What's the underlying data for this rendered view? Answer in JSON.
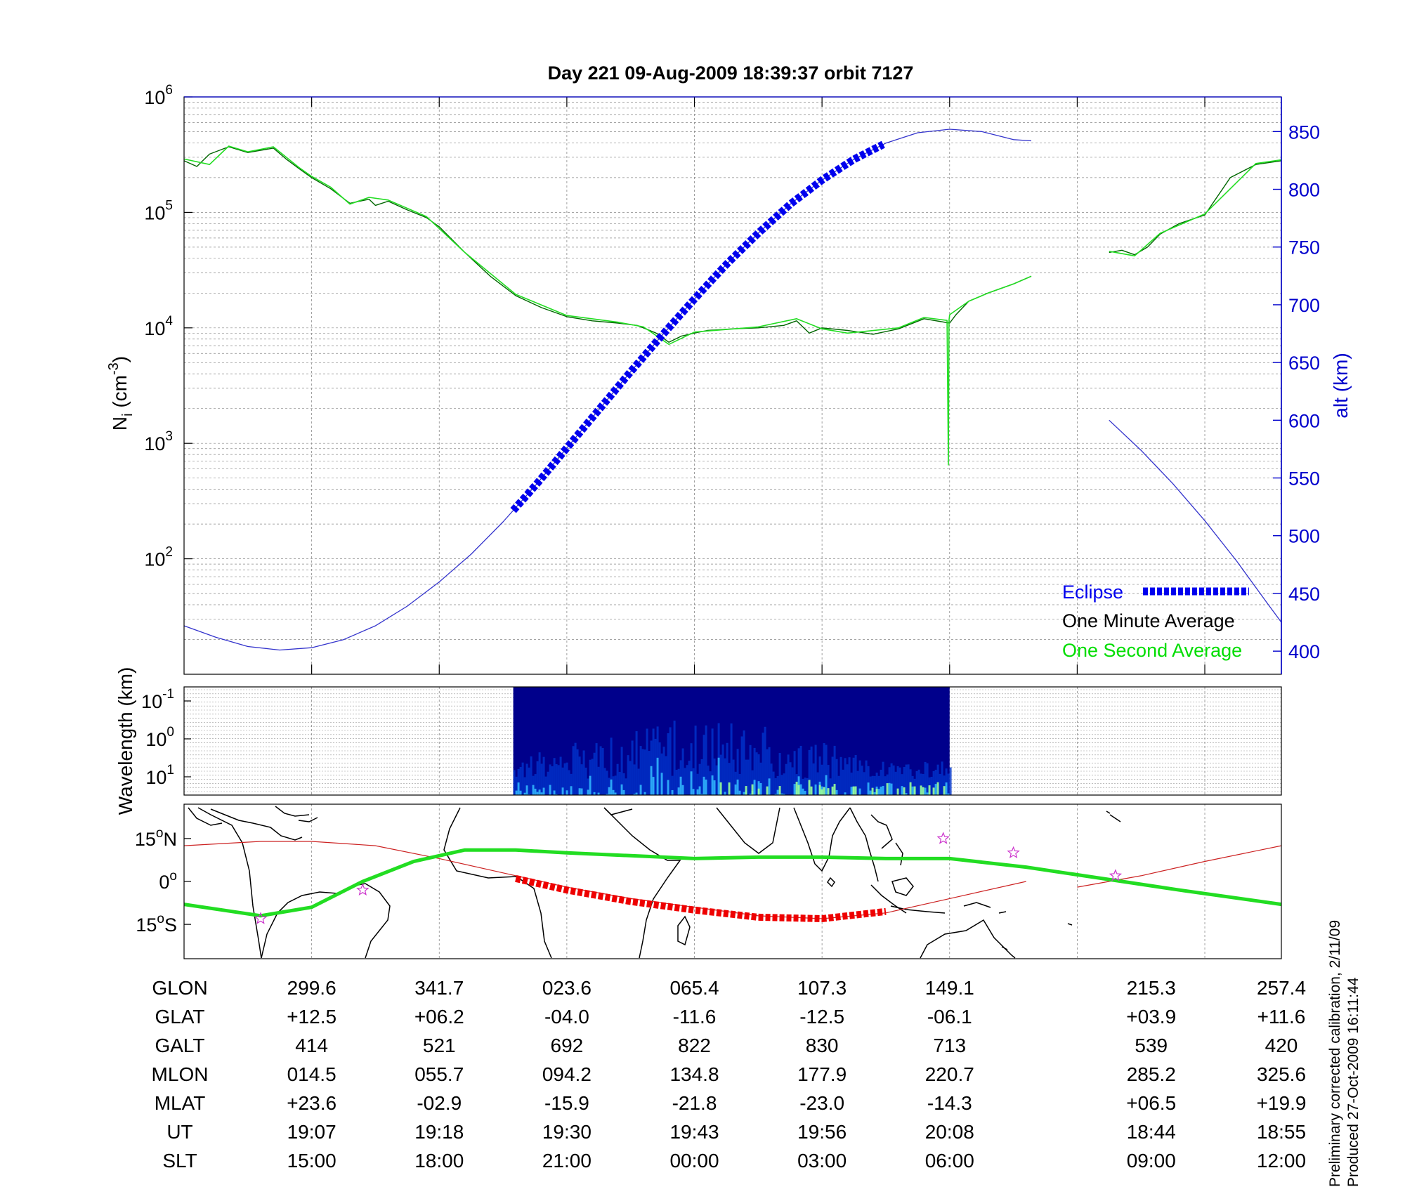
{
  "chart_data": [
    {
      "type": "line",
      "title": "Day 221  09-Aug-2009 18:39:37   orbit 7127",
      "ylabel": "N_i (cm^-3)",
      "ylabel_base": "N",
      "ylabel_sub": "i",
      "ylabel_unit": "(cm",
      "ylabel_exp": "-3",
      "ylabel_close": ")",
      "yscale": "log",
      "ylim": [
        10,
        1000000
      ],
      "y_tick_labels": [
        {
          "value": 100,
          "base": "10",
          "exp": "2"
        },
        {
          "value": 1000,
          "base": "10",
          "exp": "3"
        },
        {
          "value": 10000,
          "base": "10",
          "exp": "4"
        },
        {
          "value": 100000,
          "base": "10",
          "exp": "5"
        },
        {
          "value": 1000000,
          "base": "10",
          "exp": "6"
        }
      ],
      "y2label": "alt (km)",
      "y2lim": [
        380,
        880
      ],
      "y2_ticks": [
        "400",
        "450",
        "500",
        "550",
        "600",
        "650",
        "700",
        "750",
        "800",
        "850"
      ],
      "xlim": [
        0,
        8.6
      ],
      "grid": true,
      "legend_position": "bottom-right",
      "legend": [
        {
          "label": "Eclipse",
          "color": "#0000ee"
        },
        {
          "label": "One Minute Average",
          "color": "#000000"
        },
        {
          "label": "One Second Average",
          "color": "#00dd00"
        }
      ],
      "series": [
        {
          "name": "One Minute Average",
          "color": "#006600",
          "segments": [
            {
              "x": [
                0,
                0.1,
                0.2,
                0.35,
                0.5,
                0.7,
                0.8,
                0.9,
                1.0,
                1.15,
                1.3,
                1.45,
                1.5,
                1.6,
                1.75,
                1.9,
                2.0,
                2.2,
                2.4,
                2.6,
                2.8,
                3.0,
                3.2,
                3.4,
                3.55,
                3.6,
                3.7,
                3.8,
                3.9,
                4.0,
                4.1,
                4.3,
                4.5,
                4.7,
                4.8,
                4.9,
                5.0,
                5.2,
                5.4,
                5.6,
                5.8,
                6.0,
                6.05,
                6.15,
                6.3,
                6.5,
                6.64
              ],
              "y": [
                280000,
                250000,
                320000,
                370000,
                330000,
                360000,
                290000,
                240000,
                200000,
                160000,
                120000,
                130000,
                115000,
                125000,
                105000,
                90000,
                75000,
                45000,
                28000,
                19000,
                15000,
                12500,
                11500,
                11000,
                10500,
                10000,
                9000,
                7500,
                8500,
                9000,
                9500,
                9800,
                10000,
                10500,
                11500,
                9000,
                10000,
                9500,
                8800,
                9800,
                12000,
                11000,
                13000,
                17000,
                20000,
                24000,
                28000
              ]
            },
            {
              "x": [
                7.25,
                7.35,
                7.45,
                7.55,
                7.65,
                7.8,
                8.0,
                8.2,
                8.4,
                8.6
              ],
              "y": [
                45000,
                47000,
                43000,
                50000,
                65000,
                80000,
                95000,
                200000,
                260000,
                280000
              ]
            }
          ]
        },
        {
          "name": "One Second Average",
          "color": "#22dd22",
          "segments": [
            {
              "x": [
                0,
                0.2,
                0.35,
                0.5,
                0.7,
                0.9,
                1.0,
                1.15,
                1.3,
                1.45,
                1.6,
                1.9,
                2.2,
                2.6,
                3.0,
                3.4,
                3.6,
                3.8,
                4.0,
                4.5,
                4.8,
                5.0,
                5.2,
                5.6,
                5.8,
                5.98,
                5.99,
                5.995,
                6.0,
                6.15,
                6.3,
                6.5,
                6.64
              ],
              "y": [
                290000,
                260000,
                375000,
                335000,
                370000,
                245000,
                205000,
                165000,
                118000,
                135000,
                128000,
                92000,
                45000,
                19500,
                12800,
                11200,
                10200,
                7200,
                9200,
                10200,
                12000,
                9800,
                9000,
                10000,
                12300,
                11600,
                650,
                11600,
                13000,
                17000,
                20000,
                24000,
                28000
              ]
            },
            {
              "x": [
                7.25,
                7.45,
                7.65,
                8.0,
                8.4,
                8.6
              ],
              "y": [
                46000,
                42000,
                66000,
                97000,
                265000,
                285000
              ]
            }
          ]
        },
        {
          "name": "alt (km)",
          "axis": "y2",
          "color": "#3333cc",
          "segments": [
            {
              "x": [
                0,
                0.25,
                0.5,
                0.75,
                1.0,
                1.25,
                1.5,
                1.75,
                2.0,
                2.25,
                2.5,
                2.75,
                3.0,
                3.25,
                3.5,
                3.75,
                4.0,
                4.25,
                4.5,
                4.75,
                5.0,
                5.25,
                5.5,
                5.75,
                6.0,
                6.25,
                6.5,
                6.64
              ],
              "y": [
                422,
                412,
                404,
                401,
                403,
                410,
                422,
                439,
                460,
                484,
                512,
                543,
                576,
                609,
                642,
                674,
                705,
                735,
                762,
                787,
                808,
                826,
                840,
                849,
                852,
                850,
                843,
                842
              ]
            },
            {
              "x": [
                7.25,
                7.5,
                7.75,
                8.0,
                8.25,
                8.5,
                8.6
              ],
              "y": [
                600,
                574,
                545,
                513,
                478,
                440,
                425
              ]
            }
          ]
        }
      ],
      "eclipse": {
        "x_start": 2.58,
        "x_end": 5.48,
        "color": "#0000ee"
      }
    },
    {
      "type": "heatmap",
      "ylabel": "Wavelength (km)",
      "yscale": "log",
      "y_tick_labels": [
        {
          "base": "10",
          "exp": "-1"
        },
        {
          "base": "10",
          "exp": "0"
        },
        {
          "base": "10",
          "exp": "1"
        }
      ],
      "x_start": 2.58,
      "x_end": 6.0,
      "colormap": [
        "#00008b",
        "#0033cc",
        "#33bbff",
        "#99ff99"
      ]
    },
    {
      "type": "line",
      "subtype": "map",
      "y_tick_labels": [
        {
          "deg": "15",
          "hemi": "N"
        },
        {
          "deg": "0",
          "hemi": ""
        },
        {
          "deg": "15",
          "hemi": "S"
        }
      ],
      "ylim": [
        -27,
        27
      ],
      "series": [
        {
          "name": "orbit track",
          "color": "#cc2222",
          "x": [
            0,
            0.6,
            1.0,
            1.5,
            2.0,
            2.5,
            3.0,
            3.5,
            4.0,
            4.5,
            5.0,
            5.5,
            6.0,
            6.6
          ],
          "y": [
            12.5,
            14,
            14,
            12.5,
            8,
            3,
            -2,
            -6,
            -9,
            -12,
            -13,
            -11,
            -6,
            0
          ]
        },
        {
          "name": "orbit track east",
          "color": "#cc2222",
          "x": [
            7.0,
            7.5,
            8.0,
            8.6
          ],
          "y": [
            -2,
            2,
            7,
            12.5
          ]
        },
        {
          "name": "magnetic equator",
          "color": "#22dd22",
          "x": [
            0,
            0.3,
            0.6,
            1.0,
            1.4,
            1.8,
            2.2,
            2.6,
            3.0,
            3.5,
            4.0,
            4.5,
            5.0,
            5.5,
            6.0,
            6.6,
            7.2,
            7.8,
            8.6
          ],
          "y": [
            -8,
            -10,
            -12,
            -9,
            0,
            7,
            11,
            11,
            10,
            9,
            8,
            8.5,
            8.5,
            8,
            8,
            5,
            1,
            -3,
            -8
          ]
        },
        {
          "name": "eclipse track",
          "color": "#ee0000",
          "x": [
            2.6,
            3.0,
            3.5,
            4.0,
            4.5,
            5.0,
            5.5
          ],
          "y": [
            1,
            -3,
            -7,
            -10,
            -12.5,
            -13,
            -10.5
          ]
        }
      ],
      "stars": [
        {
          "x": 0.6,
          "y": -13
        },
        {
          "x": 1.4,
          "y": -3
        },
        {
          "x": 5.95,
          "y": 15
        },
        {
          "x": 6.5,
          "y": 10
        },
        {
          "x": 7.3,
          "y": 2
        }
      ]
    }
  ],
  "table": {
    "row_labels": [
      "GLON",
      "GLAT",
      "GALT",
      "MLON",
      "MLAT",
      "UT",
      "SLT"
    ],
    "columns": [
      {
        "x": 1,
        "values": [
          "299.6",
          "+12.5",
          "414",
          "014.5",
          "+23.6",
          "19:07",
          "15:00"
        ]
      },
      {
        "x": 2,
        "values": [
          "341.7",
          "+06.2",
          "521",
          "055.7",
          "-02.9",
          "19:18",
          "18:00"
        ]
      },
      {
        "x": 3,
        "values": [
          "023.6",
          "-04.0",
          "692",
          "094.2",
          "-15.9",
          "19:30",
          "21:00"
        ]
      },
      {
        "x": 4,
        "values": [
          "065.4",
          "-11.6",
          "822",
          "134.8",
          "-21.8",
          "19:43",
          "00:00"
        ]
      },
      {
        "x": 5,
        "values": [
          "107.3",
          "-12.5",
          "830",
          "177.9",
          "-23.0",
          "19:56",
          "03:00"
        ]
      },
      {
        "x": 6,
        "values": [
          "149.1",
          "-06.1",
          "713",
          "220.7",
          "-14.3",
          "20:08",
          "06:00"
        ]
      },
      {
        "x": 7.58,
        "values": [
          "215.3",
          "+03.9",
          "539",
          "285.2",
          "+06.5",
          "18:44",
          "09:00"
        ]
      },
      {
        "x": 8.6,
        "values": [
          "257.4",
          "+11.6",
          "420",
          "325.6",
          "+19.9",
          "18:55",
          "12:00"
        ]
      }
    ]
  },
  "footer": {
    "line1": "Preliminary corrected calibration, 2/11/09",
    "line2": "Produced 27-Oct-2009 16:11:44"
  }
}
